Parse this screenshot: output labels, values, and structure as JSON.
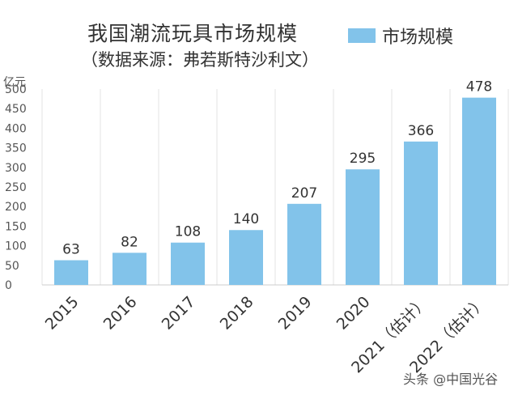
{
  "chart_data": {
    "type": "bar",
    "title": "我国潮流玩具市场规模",
    "subtitle": "（数据来源：弗若斯特沙利文）",
    "ylabel": "亿元",
    "xlabel": "",
    "categories": [
      "2015",
      "2016",
      "2017",
      "2018",
      "2019",
      "2020",
      "2021（估计）",
      "2022（估计）"
    ],
    "series": [
      {
        "name": "市场规模",
        "values": [
          63,
          82,
          108,
          140,
          207,
          295,
          366,
          478
        ]
      }
    ],
    "ylim": [
      0,
      500
    ],
    "yticks": [
      "0",
      "50",
      "100",
      "150",
      "200",
      "250",
      "300",
      "350",
      "400",
      "450",
      "500"
    ],
    "grid": "vertical",
    "legend": "top-right",
    "bar_color": "#82C3EA",
    "grid_color": "#e3e3e3"
  },
  "watermark": "头条 @中国光谷"
}
